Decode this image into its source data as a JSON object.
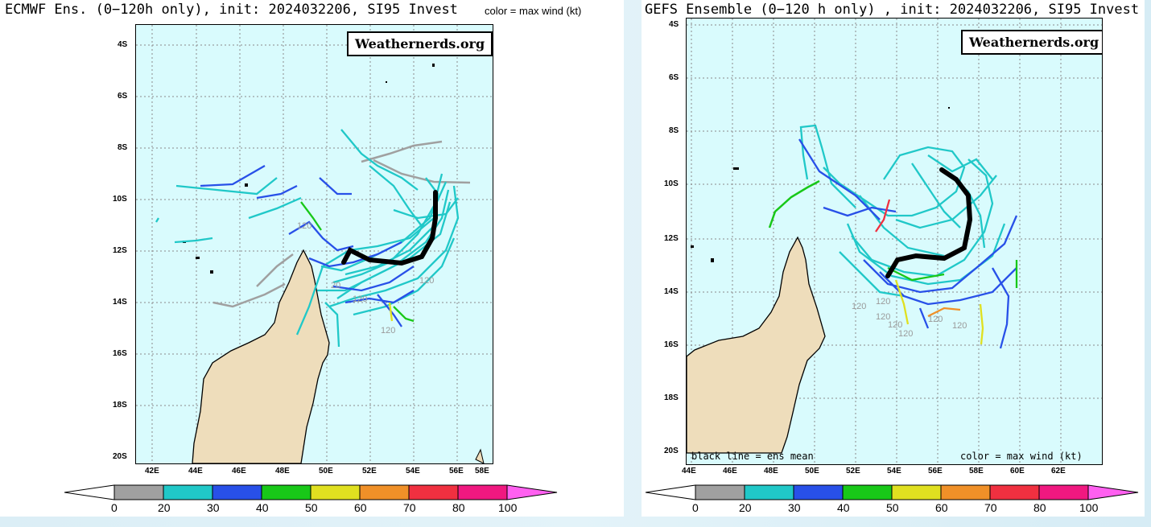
{
  "left": {
    "title": "ECMWF Ens. (0−120h only), init: 2024032206, SI95 Invest",
    "legend_note": "color = max wind (kt)",
    "brand": "Weathernerds.org",
    "lat_labels": [
      "4S",
      "6S",
      "8S",
      "10S",
      "12S",
      "14S",
      "16S",
      "18S",
      "20S"
    ],
    "lon_labels": [
      "42E",
      "44E",
      "46E",
      "48E",
      "50E",
      "52E",
      "54E",
      "56E",
      "58E"
    ],
    "hour_labels": [
      "120",
      "120",
      "120",
      "120",
      "20"
    ]
  },
  "right": {
    "title": "GEFS Ensemble (0−120 h only) , init: 2024032206, SI95 Invest",
    "brand": "Weathernerds.org",
    "mean_note": "black line = ens mean",
    "legend_note": "color = max wind (kt)",
    "lat_labels": [
      "4S",
      "6S",
      "8S",
      "10S",
      "12S",
      "14S",
      "16S",
      "18S",
      "20S"
    ],
    "lon_labels": [
      "44E",
      "46E",
      "48E",
      "50E",
      "52E",
      "54E",
      "56E",
      "58E",
      "60E",
      "62E"
    ],
    "hour_labels": [
      "120",
      "120",
      "120",
      "120",
      "120",
      "120",
      "120"
    ]
  },
  "colorbar": {
    "ticks": [
      "0",
      "20",
      "30",
      "40",
      "50",
      "60",
      "70",
      "80",
      "100"
    ],
    "colors": [
      "#a0a0a0",
      "#20c8c8",
      "#2850e8",
      "#18c818",
      "#e0e020",
      "#f09028",
      "#f03040",
      "#f01880",
      "#ff60f0"
    ]
  },
  "colors": {
    "ocean": "#d9fbfd",
    "land": "#eeddbb",
    "mean_track": "#000000"
  }
}
